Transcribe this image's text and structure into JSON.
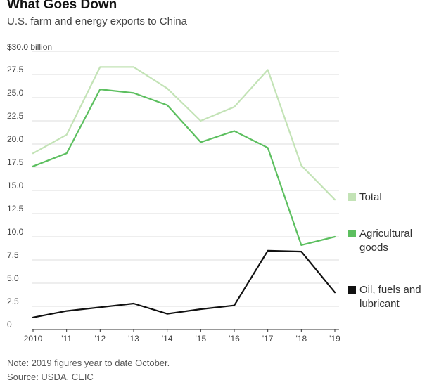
{
  "header": {
    "title": "What Goes Down",
    "subtitle": "U.S. farm and energy exports to China"
  },
  "footer": {
    "note": "Note: 2019 figures year to date October.",
    "source": "Source: USDA, CEIC"
  },
  "colors": {
    "total": "#c3e3b6",
    "agricultural": "#5cbf5f",
    "oil": "#111111",
    "grid": "#dddddd"
  },
  "chart_data": {
    "type": "line",
    "title": "What Goes Down",
    "subtitle": "U.S. farm and energy exports to China",
    "y_unit_label": "$30.0 billion",
    "ylim": [
      0,
      30
    ],
    "yticks": [
      "0",
      "2.5",
      "5.0",
      "7.5",
      "10.0",
      "12.5",
      "15.0",
      "17.5",
      "20.0",
      "22.5",
      "25.0",
      "27.5"
    ],
    "x": [
      2010,
      2011,
      2012,
      2013,
      2014,
      2015,
      2016,
      2017,
      2018,
      2019
    ],
    "xtick_labels": [
      "2010",
      "'11",
      "'12",
      "'13",
      "'14",
      "'15",
      "'16",
      "'17",
      "'18",
      "'19"
    ],
    "grid": true,
    "legend_placement": "right",
    "series": [
      {
        "name": "Total",
        "color_key": "total",
        "values": [
          19.0,
          21.0,
          28.3,
          28.3,
          26.0,
          22.5,
          24.0,
          28.0,
          17.7,
          14.0
        ]
      },
      {
        "name": "Agricultural goods",
        "color_key": "agricultural",
        "values": [
          17.6,
          19.0,
          25.9,
          25.5,
          24.2,
          20.2,
          21.4,
          19.6,
          9.1,
          10.0
        ]
      },
      {
        "name": "Oil, fuels and lubricant",
        "color_key": "oil",
        "values": [
          1.3,
          2.0,
          2.4,
          2.8,
          1.7,
          2.2,
          2.6,
          8.5,
          8.4,
          4.0
        ]
      }
    ]
  },
  "legend": {
    "total": "Total",
    "agricultural_line1": "Agricultural",
    "agricultural_line2": "goods",
    "oil_line1": "Oil, fuels and",
    "oil_line2": "lubricant"
  }
}
